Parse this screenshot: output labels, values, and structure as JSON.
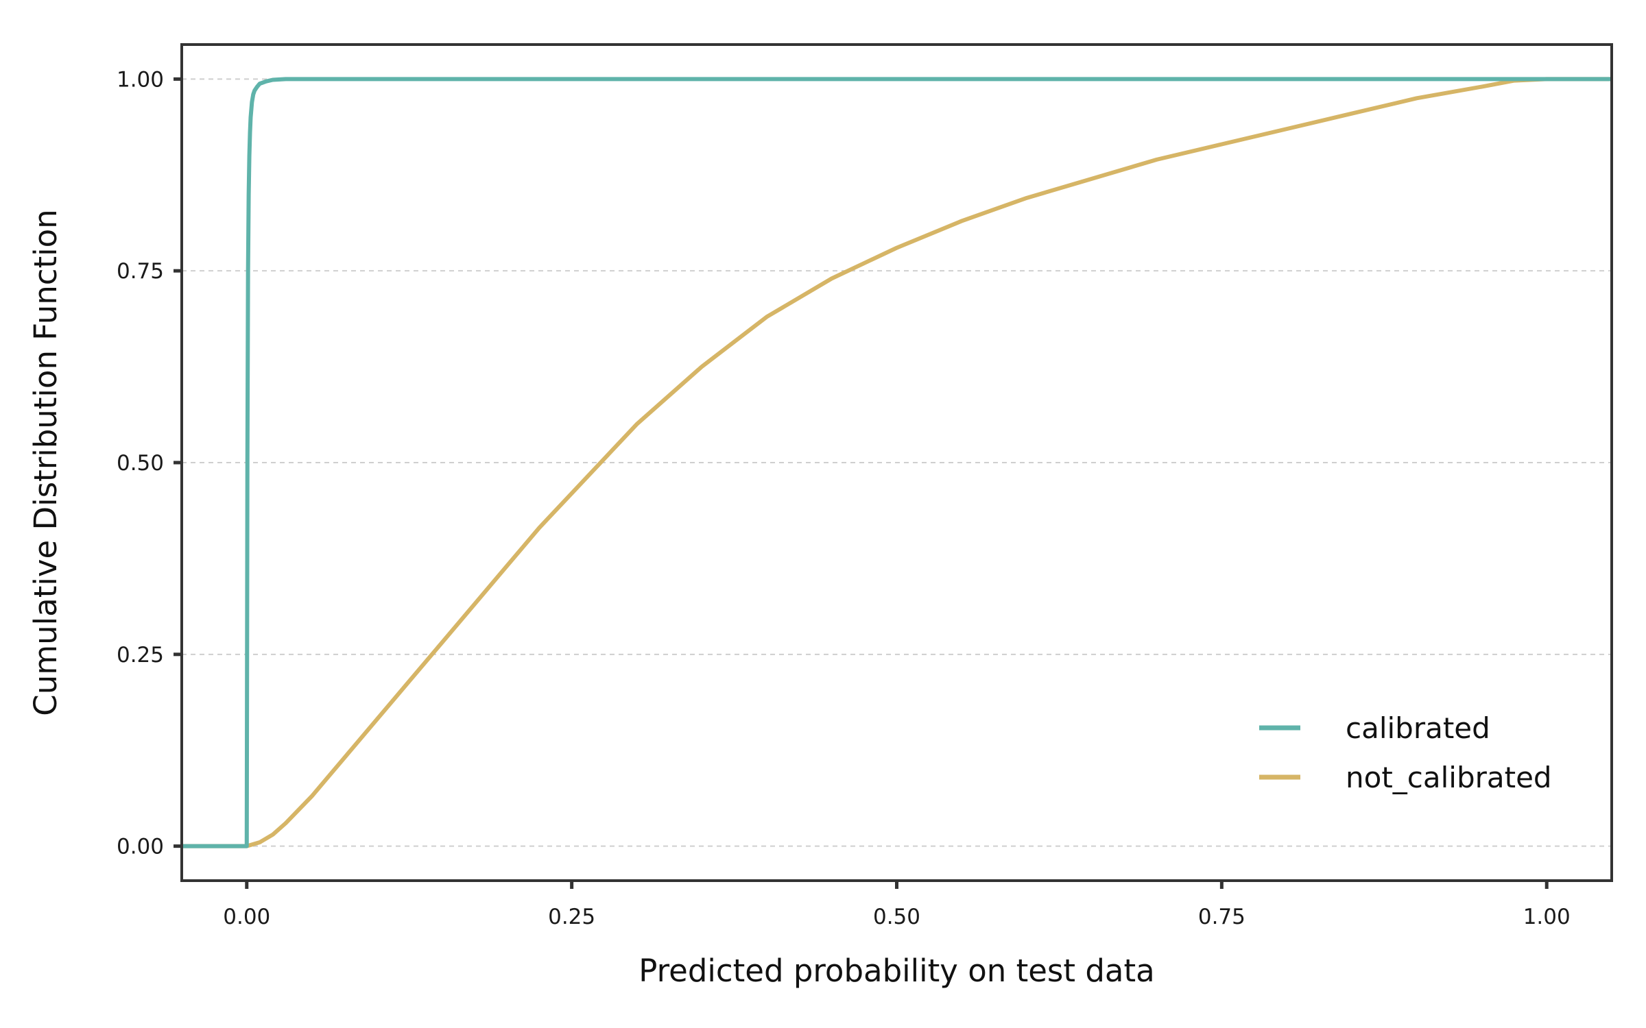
{
  "chart_data": {
    "type": "line",
    "title": "",
    "xlabel": "Predicted probability on test data",
    "ylabel": "Cumulative Distribution Function",
    "xlim": [
      -0.05,
      1.05
    ],
    "ylim": [
      -0.045,
      1.045
    ],
    "x_ticks": [
      0.0,
      0.25,
      0.5,
      0.75,
      1.0
    ],
    "x_tick_labels": [
      "0.00",
      "0.25",
      "0.50",
      "0.75",
      "1.00"
    ],
    "y_ticks": [
      0.0,
      0.25,
      0.5,
      0.75,
      1.0
    ],
    "y_tick_labels": [
      "0.00",
      "0.25",
      "0.50",
      "0.75",
      "1.00"
    ],
    "grid": "horizontal dashed",
    "legend_position": "bottom-right",
    "series": [
      {
        "name": "calibrated",
        "color": "#5fb3aa",
        "x": [
          -0.05,
          0.0,
          0.0005,
          0.001,
          0.0015,
          0.002,
          0.0025,
          0.003,
          0.004,
          0.005,
          0.006,
          0.008,
          0.01,
          0.015,
          0.02,
          0.03,
          1.0,
          1.05
        ],
        "y": [
          0.0,
          0.0,
          0.5,
          0.75,
          0.85,
          0.9,
          0.93,
          0.95,
          0.97,
          0.98,
          0.985,
          0.99,
          0.994,
          0.997,
          0.999,
          1.0,
          1.0,
          1.0
        ]
      },
      {
        "name": "not_calibrated",
        "color": "#d6b566",
        "x": [
          -0.05,
          0.0,
          0.01,
          0.02,
          0.03,
          0.05,
          0.075,
          0.1,
          0.125,
          0.15,
          0.175,
          0.2,
          0.225,
          0.25,
          0.3,
          0.35,
          0.4,
          0.45,
          0.5,
          0.55,
          0.6,
          0.65,
          0.7,
          0.75,
          0.8,
          0.85,
          0.9,
          0.95,
          0.975,
          1.0,
          1.05
        ],
        "y": [
          0.0,
          0.0,
          0.005,
          0.015,
          0.03,
          0.065,
          0.115,
          0.165,
          0.215,
          0.265,
          0.315,
          0.365,
          0.415,
          0.46,
          0.55,
          0.625,
          0.69,
          0.74,
          0.78,
          0.815,
          0.845,
          0.87,
          0.895,
          0.915,
          0.935,
          0.955,
          0.975,
          0.99,
          0.998,
          1.0,
          1.0
        ]
      }
    ]
  }
}
